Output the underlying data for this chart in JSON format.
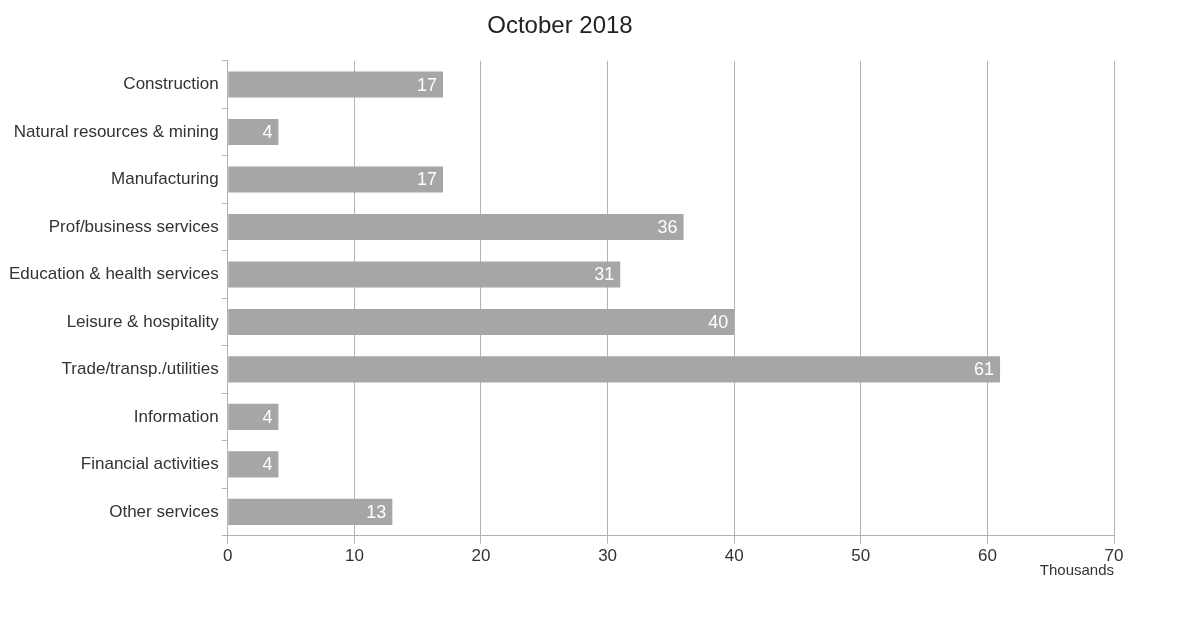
{
  "chart_data": {
    "type": "bar",
    "orientation": "horizontal",
    "title": "October 2018",
    "xlabel": "Thousands",
    "categories": [
      "Construction",
      "Natural resources & mining",
      "Manufacturing",
      "Prof/business services",
      "Education & health services",
      "Leisure & hospitality",
      "Trade/transp./utilities",
      "Information",
      "Financial activities",
      "Other services"
    ],
    "values": [
      17,
      4,
      17,
      36,
      31,
      40,
      61,
      4,
      4,
      13
    ],
    "colors": [
      "#a6a6a6",
      "#a6a6a6",
      "#a6a6a6",
      "#a6a6a6",
      "#a6a6a6",
      "#a6a6a6",
      "#a6a6a6",
      "#a6a6a6",
      "#a6a6a6",
      "#a6a6a6"
    ],
    "xlim": [
      0,
      70
    ],
    "xticks": [
      0,
      10,
      20,
      30,
      40,
      50,
      60,
      70
    ],
    "grid": "x",
    "data_labels": true,
    "legend": false
  }
}
